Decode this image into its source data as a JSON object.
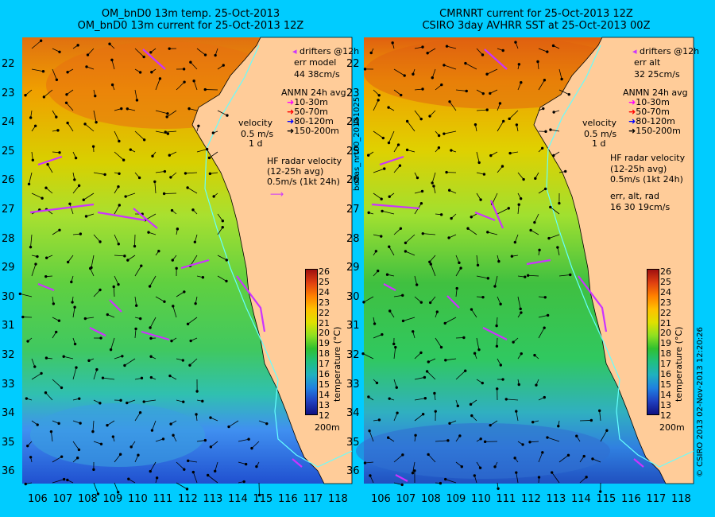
{
  "left": {
    "title1": "OM_bnD0 13m temp. 25-Oct-2013",
    "title2": "OM_bnD0 13m current for 25-Oct-2013 12Z",
    "drifters": "drifters @12h",
    "err_label": "err model",
    "err_values": "44 38cm/s",
    "anmn_title": "ANMN 24h avg",
    "velocity_label": "velocity",
    "velocity_scale": "0.5 m/s",
    "velocity_time": "1 d",
    "hf_title": "HF radar velocity",
    "hf_avg": "(12-25h avg)",
    "hf_scale": "0.5m/s (1kt 24h)",
    "depth": "200m"
  },
  "right": {
    "title1": "CMRNRT current for 25-Oct-2013 12Z",
    "title2": "CSIRO 3day AVHRR SST at 25-Oct-2013 00Z",
    "drifters": "drifters @12h",
    "err_label": "err alt",
    "err_values": "32 25cm/s",
    "anmn_title": "ANMN 24h avg",
    "velocity_label": "velocity",
    "velocity_scale": "0.5 m/s",
    "velocity_time": "1 d",
    "hf_title": "HF radar velocity",
    "hf_avg": "(12-25h avg)",
    "hf_scale": "0.5m/s (1kt 24h)",
    "err_rad_label": "err, alt, rad",
    "err_rad_values": "16 30 19cm/s",
    "depth": "200m"
  },
  "anmn_legend": [
    {
      "label": "10-30m",
      "color": "#ff00ff"
    },
    {
      "label": "50-70m",
      "color": "#ff0000"
    },
    {
      "label": "80-120m",
      "color": "#0000ff"
    },
    {
      "label": "150-200m",
      "color": "#000000"
    }
  ],
  "colorbar": {
    "title": "temperature (°C)",
    "ticks": [
      "26",
      "25",
      "24",
      "23",
      "22",
      "21",
      "20",
      "19",
      "18",
      "17",
      "16",
      "15",
      "14",
      "13",
      "12"
    ]
  },
  "axes": {
    "lon_ticks": [
      "106",
      "107",
      "108",
      "109",
      "110",
      "111",
      "112",
      "113",
      "114",
      "115",
      "116",
      "117",
      "118"
    ],
    "lat_ticks": [
      "22",
      "23",
      "24",
      "25",
      "26",
      "27",
      "28",
      "29",
      "30",
      "31",
      "32",
      "33",
      "34",
      "35",
      "36"
    ]
  },
  "side_labels": {
    "middle": "bodas_nrt00_20131025",
    "right": "© CSIRO 2013   02-Nov-2013 12:20:26"
  },
  "colors": {
    "background": "#00ccff",
    "land": "#ffcc99",
    "shelf_line": "#66ffff",
    "drifter": "#cc33ff"
  }
}
